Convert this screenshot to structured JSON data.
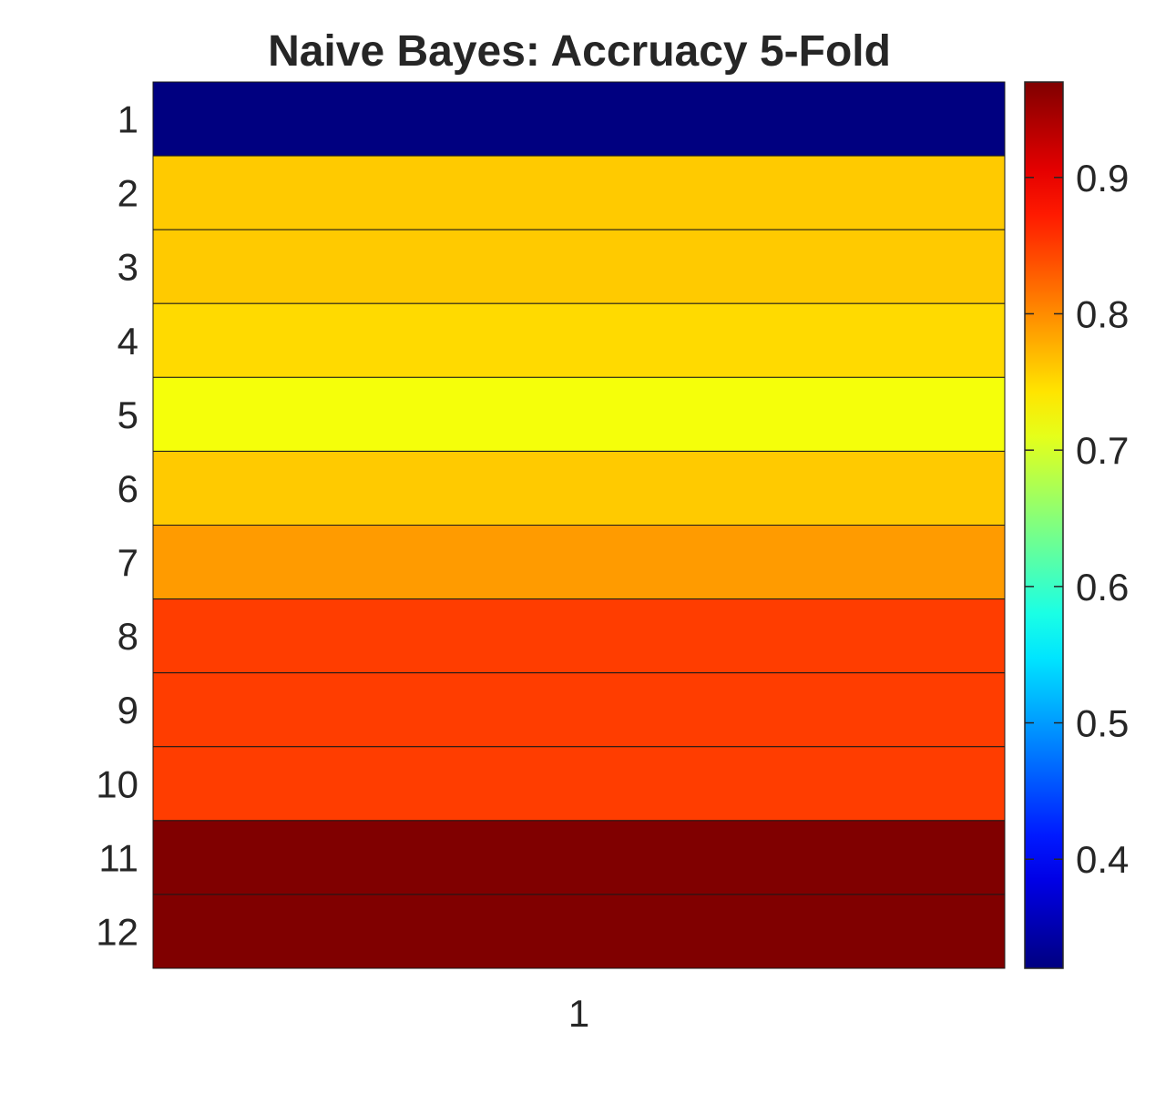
{
  "chart_data": {
    "type": "heatmap",
    "title": "Naive Bayes: Accruacy 5-Fold",
    "xlabel": "",
    "ylabel": "",
    "x_categories": [
      "1"
    ],
    "y_categories": [
      "1",
      "2",
      "3",
      "4",
      "5",
      "6",
      "7",
      "8",
      "9",
      "10",
      "11",
      "12"
    ],
    "values": [
      0.32,
      0.76,
      0.76,
      0.75,
      0.72,
      0.76,
      0.79,
      0.85,
      0.85,
      0.85,
      0.97,
      0.97
    ],
    "colormap": "jet",
    "clim": [
      0.32,
      0.97
    ],
    "colorbar": {
      "ticks": [
        0.4,
        0.5,
        0.6,
        0.7,
        0.8,
        0.9
      ],
      "tick_labels": [
        "0.4",
        "0.5",
        "0.6",
        "0.7",
        "0.8",
        "0.9"
      ],
      "position": "right"
    },
    "grid": false
  },
  "colors": {
    "text": "#262626",
    "cell_edge": "#1a1a1a",
    "axis_line": "#262626"
  }
}
